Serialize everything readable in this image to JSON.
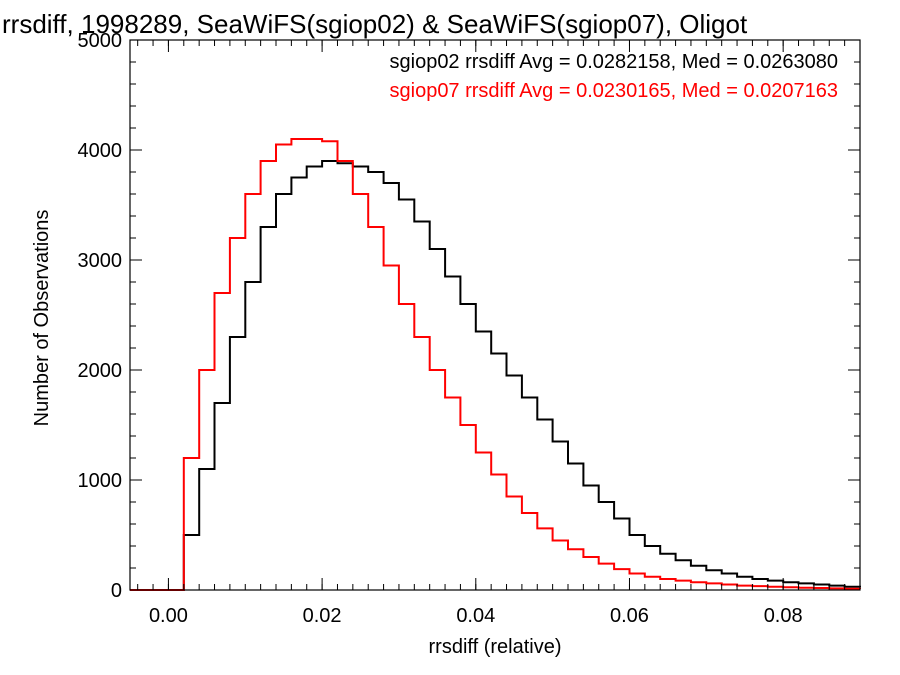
{
  "chart_data": {
    "type": "line",
    "title": "rrsdiff, 1998289, SeaWiFS(sgiop02) & SeaWiFS(sgiop07), Oligot",
    "xlabel": "rrsdiff (relative)",
    "ylabel": "Number of Observations",
    "xlim": [
      -0.005,
      0.09
    ],
    "ylim": [
      0,
      5000
    ],
    "x_ticks": [
      0.0,
      0.02,
      0.04,
      0.06,
      0.08
    ],
    "x_tick_labels": [
      "0.00",
      "0.02",
      "0.04",
      "0.06",
      "0.08"
    ],
    "y_ticks": [
      0,
      1000,
      2000,
      3000,
      4000,
      5000
    ],
    "y_tick_labels": [
      "0",
      "1000",
      "2000",
      "3000",
      "4000",
      "5000"
    ],
    "grid": false,
    "legend_position": "top-right",
    "annotations": [
      "sgiop02 rrsdiff Avg = 0.0282158, Med = 0.0263080",
      "sgiop07 rrsdiff Avg = 0.0230165, Med = 0.0207163"
    ],
    "series": [
      {
        "name": "sgiop02",
        "color": "#000000",
        "x": [
          -0.005,
          0.0,
          0.002,
          0.004,
          0.006,
          0.008,
          0.01,
          0.012,
          0.014,
          0.016,
          0.018,
          0.02,
          0.022,
          0.024,
          0.026,
          0.028,
          0.03,
          0.032,
          0.034,
          0.036,
          0.038,
          0.04,
          0.042,
          0.044,
          0.046,
          0.048,
          0.05,
          0.052,
          0.054,
          0.056,
          0.058,
          0.06,
          0.062,
          0.064,
          0.066,
          0.068,
          0.07,
          0.072,
          0.074,
          0.076,
          0.078,
          0.08,
          0.082,
          0.084,
          0.086,
          0.088,
          0.09
        ],
        "y": [
          0,
          0,
          500,
          1100,
          1700,
          2300,
          2800,
          3300,
          3600,
          3750,
          3850,
          3900,
          3880,
          3850,
          3800,
          3700,
          3550,
          3350,
          3100,
          2850,
          2600,
          2350,
          2150,
          1950,
          1750,
          1550,
          1350,
          1150,
          950,
          800,
          650,
          500,
          400,
          330,
          270,
          220,
          180,
          150,
          120,
          100,
          85,
          70,
          60,
          50,
          40,
          30,
          25
        ]
      },
      {
        "name": "sgiop07",
        "color": "#ff0000",
        "x": [
          -0.005,
          0.0,
          0.002,
          0.004,
          0.006,
          0.008,
          0.01,
          0.012,
          0.014,
          0.016,
          0.018,
          0.02,
          0.022,
          0.024,
          0.026,
          0.028,
          0.03,
          0.032,
          0.034,
          0.036,
          0.038,
          0.04,
          0.042,
          0.044,
          0.046,
          0.048,
          0.05,
          0.052,
          0.054,
          0.056,
          0.058,
          0.06,
          0.062,
          0.064,
          0.066,
          0.068,
          0.07,
          0.072,
          0.074,
          0.076,
          0.078,
          0.08,
          0.082,
          0.084,
          0.086,
          0.088,
          0.09
        ],
        "y": [
          0,
          0,
          1200,
          2000,
          2700,
          3200,
          3600,
          3900,
          4050,
          4100,
          4100,
          4080,
          3900,
          3600,
          3300,
          2950,
          2600,
          2300,
          2000,
          1750,
          1500,
          1250,
          1050,
          850,
          700,
          560,
          450,
          370,
          300,
          240,
          190,
          150,
          120,
          100,
          85,
          70,
          60,
          50,
          40,
          35,
          30,
          25,
          20,
          18,
          15,
          12,
          10
        ]
      }
    ]
  }
}
